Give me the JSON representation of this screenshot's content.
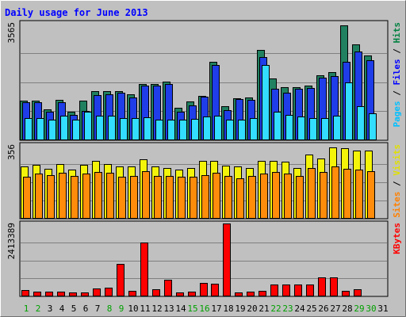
{
  "chart_data": {
    "type": "bar",
    "title": "Daily usage for June 2013",
    "categories": [
      "1",
      "2",
      "3",
      "4",
      "5",
      "6",
      "7",
      "8",
      "9",
      "10",
      "11",
      "12",
      "13",
      "14",
      "15",
      "16",
      "17",
      "18",
      "19",
      "20",
      "21",
      "22",
      "23",
      "24",
      "25",
      "26",
      "27",
      "28",
      "29",
      "30",
      "31"
    ],
    "weekend_days": [
      "1",
      "2",
      "8",
      "9",
      "15",
      "16",
      "22",
      "23",
      "29",
      "30"
    ],
    "panels": [
      {
        "name": "hits-files-pages",
        "ymax_label": "3565",
        "ylim": [
          0,
          3565
        ],
        "axis_title": [
          "Pages",
          " / ",
          "Files",
          " / ",
          "Hits"
        ],
        "axis_title_colors": [
          "#00c0ff",
          "#000000",
          "#0000ff",
          "#000000",
          "#008040"
        ],
        "series": [
          {
            "name": "Hits",
            "color": "#208060",
            "values": [
              1190,
              1190,
              920,
              1220,
              860,
              1190,
              1480,
              1480,
              1480,
              1390,
              1700,
              1700,
              1760,
              960,
              1160,
              1340,
              2380,
              1010,
              1270,
              1290,
              2730,
              1860,
              1600,
              1600,
              1640,
              1960,
              2070,
              3490,
              2900,
              2580,
              0
            ]
          },
          {
            "name": "Files",
            "color": "#1f3de8",
            "values": [
              1130,
              1130,
              850,
              1130,
              760,
              870,
              1350,
              1390,
              1430,
              1290,
              1650,
              1640,
              1690,
              860,
              1050,
              1300,
              2280,
              900,
              1230,
              1210,
              2530,
              1550,
              1420,
              1550,
              1570,
              1880,
              1950,
              2380,
              2700,
              2420,
              0
            ]
          },
          {
            "name": "Pages",
            "color": "#33ddff",
            "values": [
              660,
              660,
              610,
              720,
              610,
              850,
              720,
              720,
              650,
              650,
              690,
              610,
              610,
              610,
              630,
              710,
              720,
              610,
              610,
              650,
              2270,
              860,
              740,
              700,
              660,
              660,
              730,
              1740,
              1010,
              810,
              0
            ]
          }
        ]
      },
      {
        "name": "visits-sites",
        "ymax_label": "356",
        "ylim": [
          0,
          356
        ],
        "axis_title": [
          "Sites",
          " / ",
          "Visits"
        ],
        "axis_title_colors": [
          "#ff8000",
          "#000000",
          "#e0e000"
        ],
        "series": [
          {
            "name": "Visits",
            "color": "#f4f40a",
            "values": [
              250,
              260,
              240,
              265,
              235,
              260,
              280,
              265,
              250,
              250,
              285,
              250,
              245,
              235,
              245,
              280,
              280,
              255,
              250,
              245,
              280,
              280,
              275,
              245,
              310,
              290,
              345,
              340,
              330,
              330,
              0
            ]
          },
          {
            "name": "Sites",
            "color": "#ff8c0a",
            "values": [
              200,
              215,
              210,
              220,
              205,
              215,
              225,
              220,
              200,
              205,
              230,
              205,
              205,
              200,
              200,
              210,
              220,
              205,
              195,
              205,
              215,
              225,
              215,
              205,
              245,
              225,
              250,
              240,
              235,
              230,
              0
            ]
          }
        ]
      },
      {
        "name": "kbytes",
        "ymax_label": "2413389",
        "ylim": [
          0,
          2413389
        ],
        "axis_title": [
          "KBytes"
        ],
        "axis_title_colors": [
          "#ff0000"
        ],
        "series": [
          {
            "name": "KBytes",
            "color": "#ff0000",
            "values": [
              190000,
              130000,
              130000,
              130000,
              110000,
              110000,
              240000,
              260000,
              1060000,
              170000,
              1770000,
              210000,
              530000,
              110000,
              130000,
              420000,
              390000,
              2413389,
              110000,
              130000,
              150000,
              360000,
              360000,
              380000,
              380000,
              620000,
              620000,
              150000,
              200000,
              0,
              0
            ]
          }
        ]
      }
    ]
  },
  "colors": {
    "frame_background": "#c0c0c0",
    "plot_background": "#c0c0c0",
    "title_text": "#0000ff",
    "weekend_day_label": "#00a000",
    "weekday_label": "#000000"
  }
}
